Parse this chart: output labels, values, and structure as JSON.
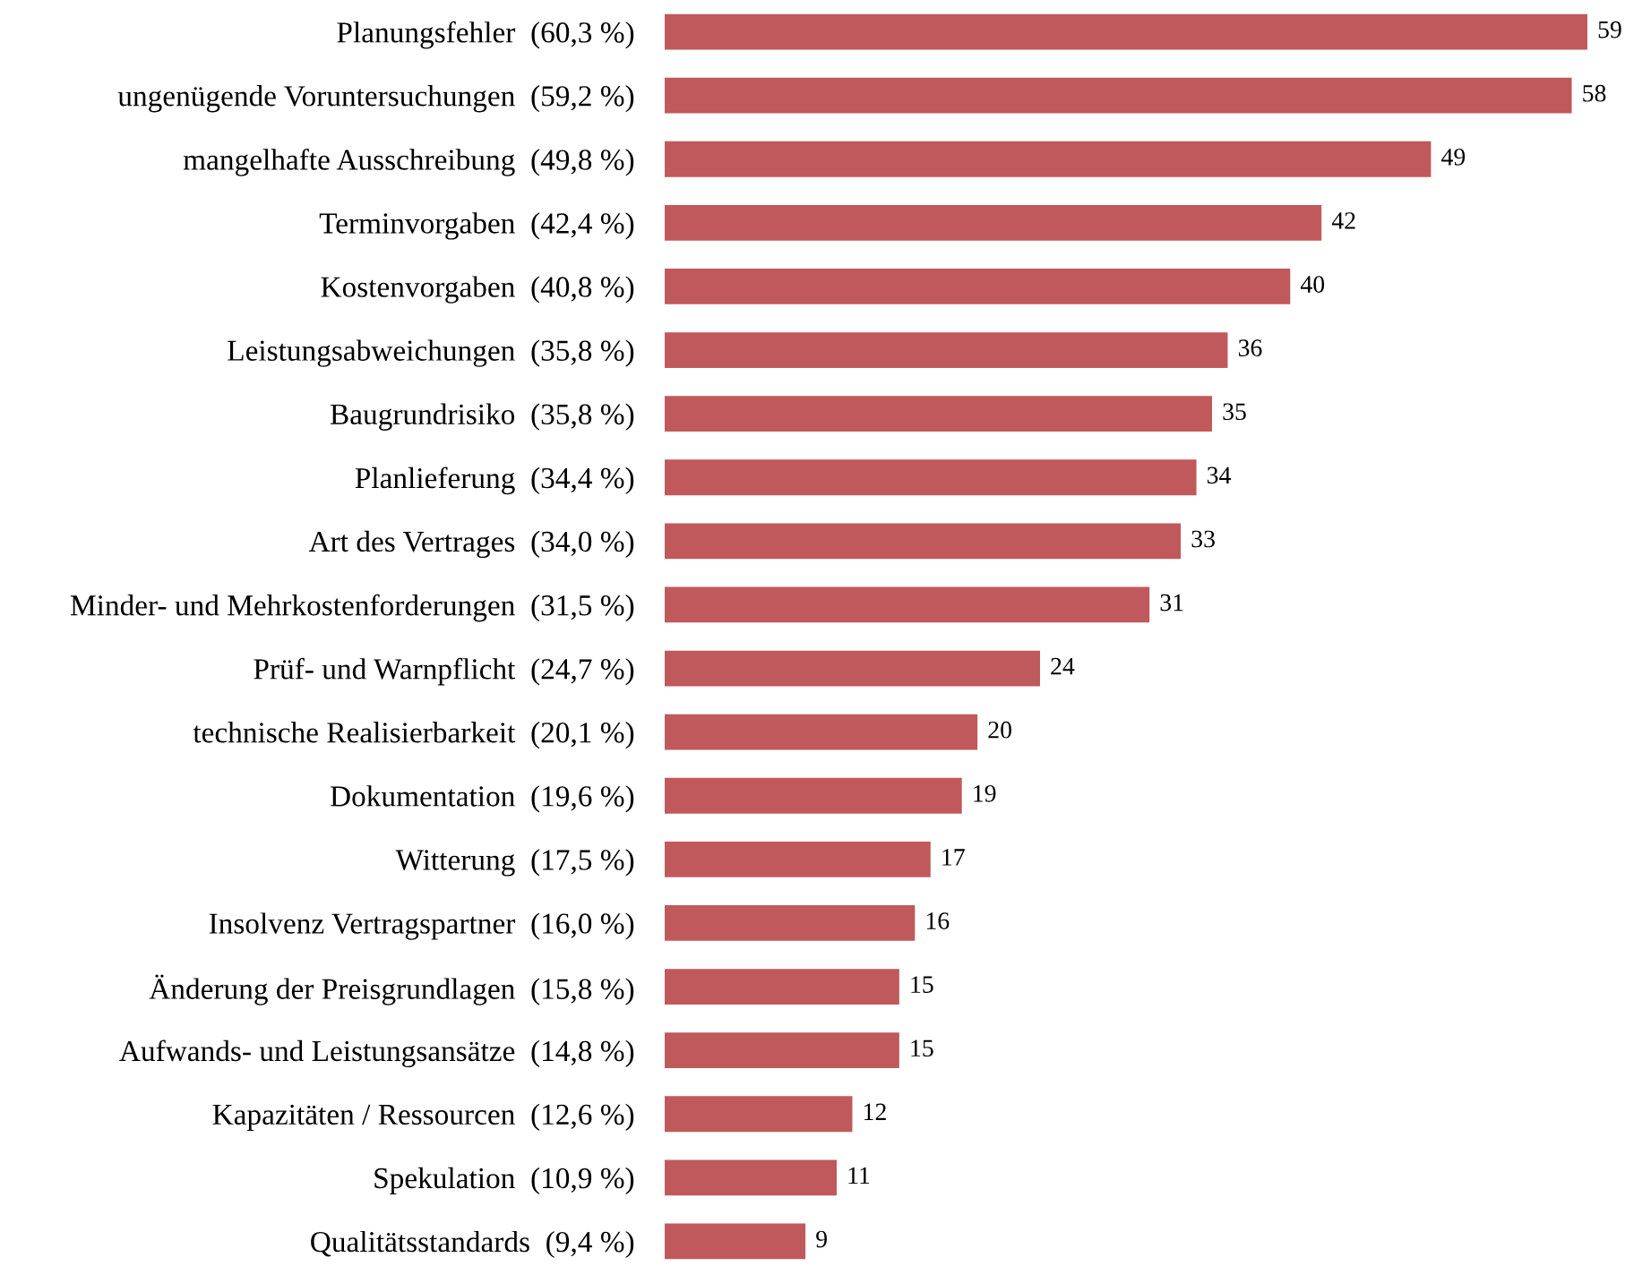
{
  "chart_data": {
    "type": "bar",
    "orientation": "horizontal",
    "categories": [
      "Planungsfehler  (60,3 %)",
      "ungenügende Voruntersuchungen  (59,2 %)",
      "mangelhafte Ausschreibung  (49,8 %)",
      "Terminvorgaben  (42,4 %)",
      "Kostenvorgaben  (40,8 %)",
      "Leistungsabweichungen  (35,8 %)",
      "Baugrundrisiko  (35,8 %)",
      "Planlieferung  (34,4 %)",
      "Art des Vertrages  (34,0 %)",
      "Minder- und Mehrkostenforderungen  (31,5 %)",
      "Prüf- und Warnpflicht  (24,7 %)",
      "technische Realisierbarkeit  (20,1 %)",
      "Dokumentation  (19,6 %)",
      "Witterung  (17,5 %)",
      "Insolvenz Vertragspartner  (16,0 %)",
      "Änderung der Preisgrundlagen  (15,8 %)",
      "Aufwands- und Leistungsansätze  (14,8 %)",
      "Kapazitäten / Ressourcen  (12,6 %)",
      "Spekulation  (10,9 %)",
      "Qualitätsstandards  (9,4 %)"
    ],
    "values": [
      59,
      58,
      49,
      42,
      40,
      36,
      35,
      34,
      33,
      31,
      24,
      20,
      19,
      17,
      16,
      15,
      15,
      12,
      11,
      9
    ],
    "color": "#c0595b",
    "data_labels": true
  }
}
